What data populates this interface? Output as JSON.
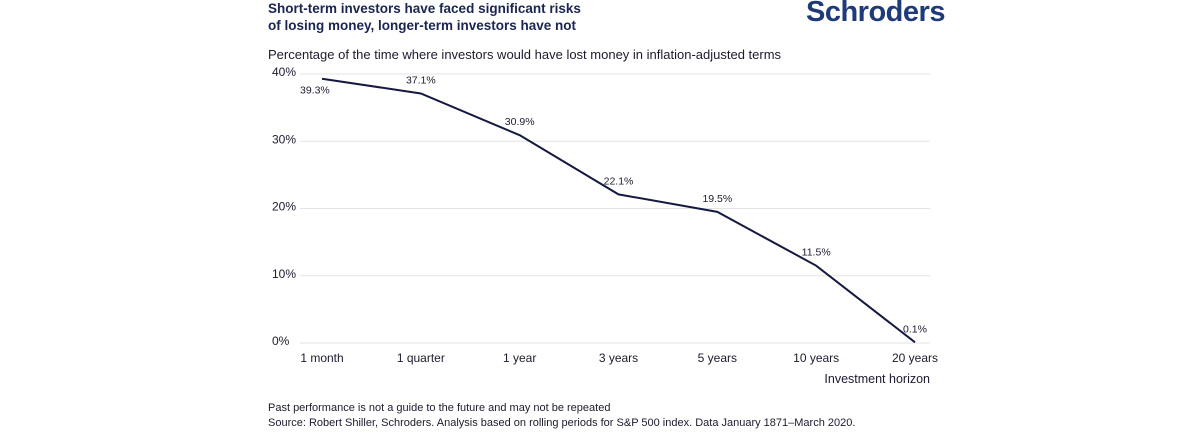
{
  "header": {
    "title_line1": "Short-term investors have faced significant risks",
    "title_line2": "of losing money, longer-term investors have not",
    "logo_text": "Schroders",
    "logo_color": "#1f3a78"
  },
  "chart_data": {
    "type": "line",
    "subtitle": "Percentage of the time where investors would have lost money in inflation-adjusted terms",
    "categories": [
      "1 month",
      "1 quarter",
      "1 year",
      "3 years",
      "5 years",
      "10 years",
      "20 years"
    ],
    "series": [
      {
        "values": [
          39.3,
          37.1,
          30.9,
          22.1,
          19.5,
          11.5,
          0.1
        ],
        "labels": [
          "39.3%",
          "37.1%",
          "30.9%",
          "22.1%",
          "19.5%",
          "11.5%",
          "0.1%"
        ]
      }
    ],
    "yticks": [
      0,
      10,
      20,
      30,
      40
    ],
    "ytick_labels": [
      "0%",
      "10%",
      "20%",
      "30%",
      "40%"
    ],
    "ylim": [
      0,
      40
    ],
    "xlabel": "Investment horizon",
    "ylabel": "",
    "grid": true,
    "line_color": "#14193f",
    "grid_color": "#e3e3e3"
  },
  "footer": {
    "note": "Past performance is not a guide to the future and may not be repeated",
    "source": "Source: Robert Shiller, Schroders. Analysis based on rolling periods for S&P 500 index. Data January 1871–March 2020."
  }
}
